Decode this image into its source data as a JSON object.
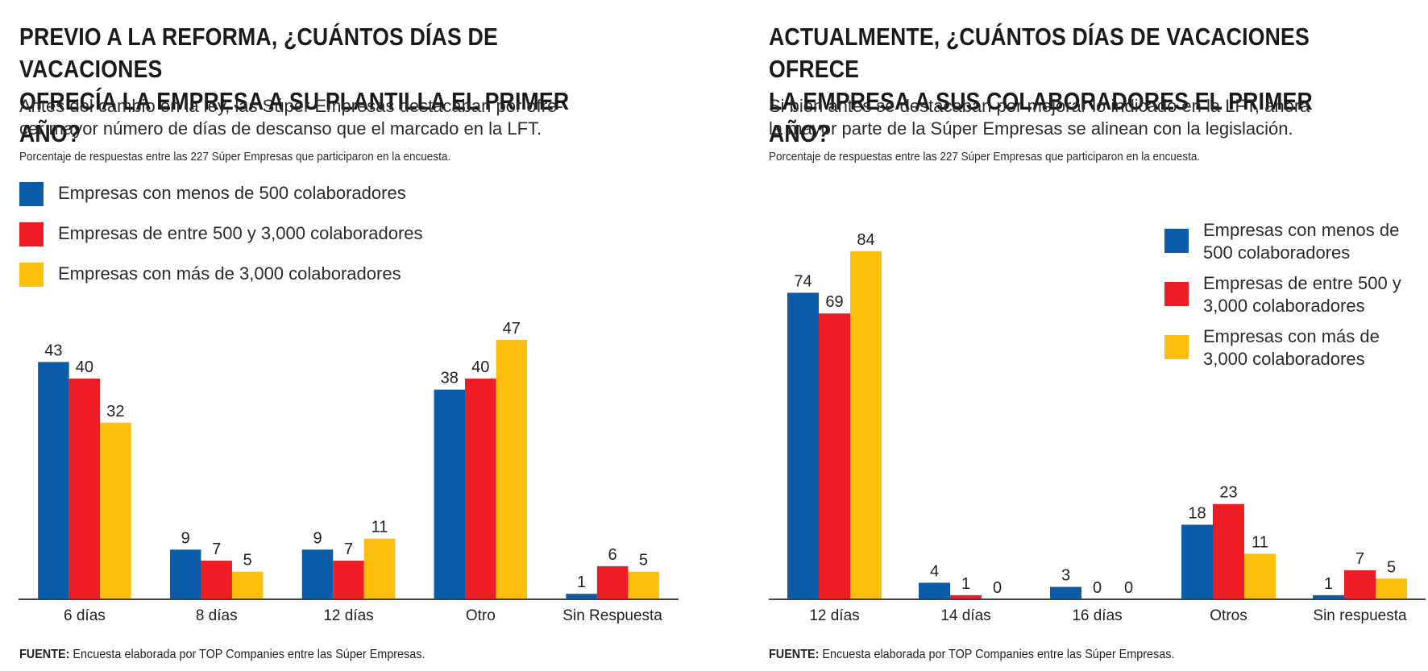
{
  "colors": {
    "blue": "#0a5ca8",
    "red": "#ee1c25",
    "yellow": "#fdbe0e",
    "axis": "#444444"
  },
  "left": {
    "title_lines": [
      "PREVIO A LA REFORMA, ¿CUÁNTOS DÍAS DE VACACIONES",
      "OFRECÍA LA EMPRESA A SU PLANTILLA EL PRIMER AÑO?"
    ],
    "subtitle_lines": [
      "Antes del cambio en la ley, las Súper Empresas destacaban por ofre-",
      "cer mayor número de días de descanso que el marcado en la LFT."
    ],
    "note": "Porcentaje de respuestas entre las 227 Súper Empresas que participaron en la encuesta.",
    "legend": [
      {
        "label": "Empresas con menos de 500 colaboradores",
        "color": "#0a5ca8"
      },
      {
        "label": "Empresas de entre 500 y 3,000 colaboradores",
        "color": "#ee1c25"
      },
      {
        "label": "Empresas con más de 3,000 colaboradores",
        "color": "#fdbe0e"
      }
    ],
    "source_label": "FUENTE:",
    "source_text": "Encuesta elaborada por TOP Companies entre las Súper Empresas."
  },
  "right": {
    "title_lines": [
      "ACTUALMENTE, ¿CUÁNTOS DÍAS DE VACACIONES OFRECE",
      "LA EMPRESA A SUS COLABORADORES EL PRIMER AÑO?"
    ],
    "subtitle_lines": [
      "Si bien antes se destacaban por mejorar lo indicado en la LFT, ahora",
      "la mayor parte de la Súper Empresas se alinean con la legislación."
    ],
    "note": "Porcentaje de respuestas entre las 227 Súper Empresas que participaron en la encuesta.",
    "legend": [
      {
        "label": "Empresas con menos de 500 colaboradores",
        "color": "#0a5ca8"
      },
      {
        "label": "Empresas de entre 500 y 3,000 colaboradores",
        "color": "#ee1c25"
      },
      {
        "label": "Empresas con más de 3,000 colaboradores",
        "color": "#fdbe0e"
      }
    ],
    "source_label": "FUENTE:",
    "source_text": "Encuesta elaborada por TOP Companies entre las Súper Empresas."
  },
  "chart_data": [
    {
      "type": "bar",
      "categories": [
        "6 días",
        "8 días",
        "12 días",
        "Otro",
        "Sin Respuesta"
      ],
      "series": [
        {
          "name": "Empresas con menos de 500 colaboradores",
          "values": [
            43,
            9,
            9,
            38,
            1
          ]
        },
        {
          "name": "Empresas de entre 500 y 3,000 colaboradores",
          "values": [
            40,
            7,
            7,
            40,
            6
          ]
        },
        {
          "name": "Empresas con más de 3,000 colaboradores",
          "values": [
            32,
            5,
            11,
            47,
            5
          ]
        }
      ],
      "ylim": [
        0,
        47
      ],
      "grid": false,
      "legend": "top-left"
    },
    {
      "type": "bar",
      "categories": [
        "12 días",
        "14 días",
        "16 días",
        "Otros",
        "Sin respuesta"
      ],
      "series": [
        {
          "name": "Empresas con menos de 500 colaboradores",
          "values": [
            74,
            4,
            3,
            18,
            1
          ]
        },
        {
          "name": "Empresas de entre 500 y 3,000 colaboradores",
          "values": [
            69,
            1,
            0,
            23,
            7
          ]
        },
        {
          "name": "Empresas con más de 3,000 colaboradores",
          "values": [
            84,
            0,
            0,
            11,
            5
          ]
        }
      ],
      "ylim": [
        0,
        84
      ],
      "grid": false,
      "legend": "top-right"
    }
  ]
}
